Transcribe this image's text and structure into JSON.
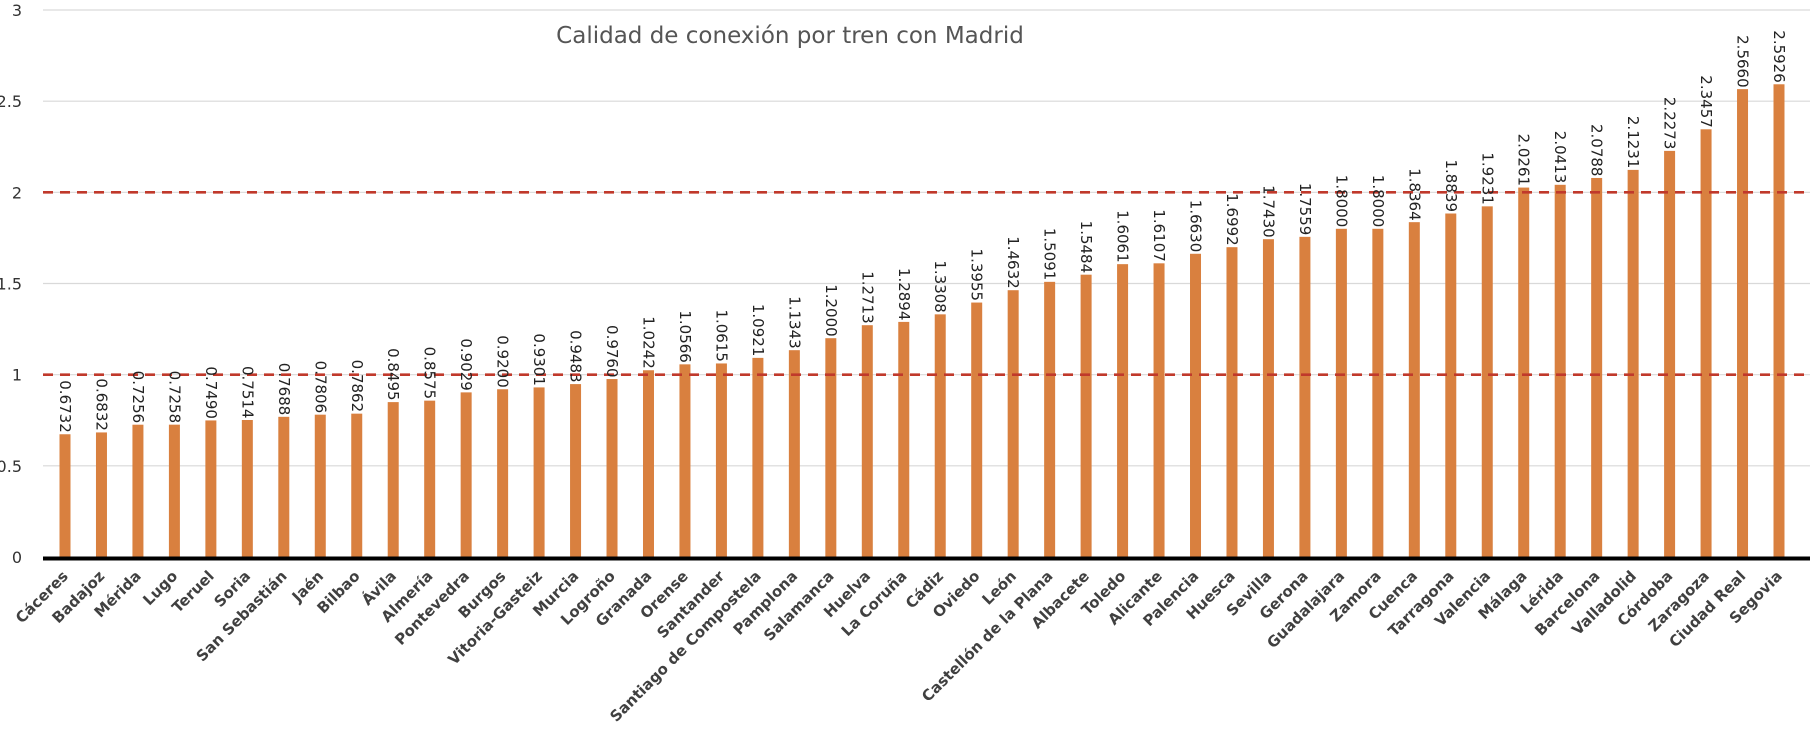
{
  "chart_data": {
    "type": "bar",
    "title": "Calidad de conexión por tren con Madrid",
    "xlabel": "",
    "ylabel": "",
    "ylim": [
      0,
      3
    ],
    "yticks": [
      "0",
      "0.5",
      "1",
      "1.5",
      "2",
      "2.5",
      "3"
    ],
    "grid": true,
    "legend": "none",
    "bar_color": "#D9803F",
    "reference_line_color": "#C0392B",
    "reference_lines": [
      1,
      2
    ],
    "categories": [
      "Cáceres",
      "Badajoz",
      "Mérida",
      "Lugo",
      "Teruel",
      "Soria",
      "San Sebastián",
      "Jaén",
      "Bilbao",
      "Ávila",
      "Almería",
      "Pontevedra",
      "Burgos",
      "Vitoria-Gasteiz",
      "Murcia",
      "Logroño",
      "Granada",
      "Orense",
      "Santander",
      "Santiago de Compostela",
      "Pamplona",
      "Salamanca",
      "Huelva",
      "La Coruña",
      "Cádiz",
      "Oviedo",
      "León",
      "Castellón de la Plana",
      "Albacete",
      "Toledo",
      "Alicante",
      "Palencia",
      "Huesca",
      "Sevilla",
      "Gerona",
      "Guadalajara",
      "Zamora",
      "Cuenca",
      "Tarragona",
      "Valencia",
      "Málaga",
      "Lérida",
      "Barcelona",
      "Valladolid",
      "Córdoba",
      "Zaragoza",
      "Ciudad Real",
      "Segovia"
    ],
    "values": [
      0.6732,
      0.6832,
      0.7256,
      0.7258,
      0.749,
      0.7514,
      0.7688,
      0.7806,
      0.7862,
      0.8495,
      0.8575,
      0.9029,
      0.92,
      0.9301,
      0.9483,
      0.976,
      1.0242,
      1.0566,
      1.0615,
      1.0921,
      1.1343,
      1.2,
      1.2713,
      1.2894,
      1.3308,
      1.3955,
      1.4632,
      1.5091,
      1.5484,
      1.6061,
      1.6107,
      1.663,
      1.6992,
      1.743,
      1.7559,
      1.8,
      1.8,
      1.8364,
      1.8839,
      1.9231,
      2.0261,
      2.0413,
      2.0788,
      2.1231,
      2.2273,
      2.3457,
      2.566,
      2.5926
    ],
    "value_labels": [
      "0.6732",
      "0.6832",
      "0.7256",
      "0.7258",
      "0.7490",
      "0.7514",
      "0.7688",
      "0.7806",
      "0.7862",
      "0.8495",
      "0.8575",
      "0.9029",
      "0.9200",
      "0.9301",
      "0.9483",
      "0.9760",
      "1.0242",
      "1.0566",
      "1.0615",
      "1.0921",
      "1.1343",
      "1.2000",
      "1.2713",
      "1.2894",
      "1.3308",
      "1.3955",
      "1.4632",
      "1.5091",
      "1.5484",
      "1.6061",
      "1.6107",
      "1.6630",
      "1.6992",
      "1.7430",
      "1.7559",
      "1.8000",
      "1.8000",
      "1.8364",
      "1.8839",
      "1.9231",
      "2.0261",
      "2.0413",
      "2.0788",
      "2.1231",
      "2.2273",
      "2.3457",
      "2.5660",
      "2.5926"
    ]
  }
}
